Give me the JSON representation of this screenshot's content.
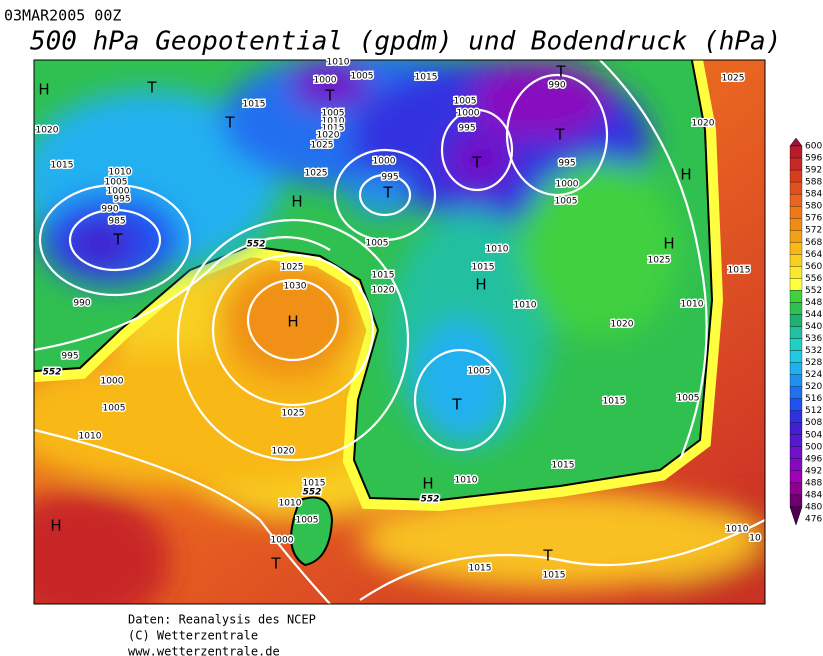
{
  "header": {
    "date": "03MAR2005 00Z",
    "title": "500 hPa Geopotential (gpdm) und Bodendruck (hPa)"
  },
  "footer": {
    "lines": [
      "Daten: Reanalysis des NCEP",
      "(C) Wetterzentrale",
      "www.wetterzentrale.de"
    ]
  },
  "colorbar": {
    "levels": [
      600,
      596,
      592,
      588,
      584,
      580,
      576,
      572,
      568,
      564,
      560,
      556,
      552,
      548,
      544,
      540,
      536,
      532,
      528,
      524,
      520,
      516,
      512,
      508,
      504,
      500,
      496,
      492,
      488,
      484,
      480,
      476
    ],
    "colors": [
      "#a01040",
      "#b81c2c",
      "#c82828",
      "#d83c1c",
      "#e05020",
      "#e86420",
      "#f07818",
      "#f08c14",
      "#f0a014",
      "#f8b818",
      "#f8d020",
      "#f8e830",
      "#ffff40",
      "#40d040",
      "#30c050",
      "#20b070",
      "#20c0a0",
      "#20d0c0",
      "#20c8e0",
      "#20b0f0",
      "#2090f0",
      "#2070f0",
      "#2050f0",
      "#3030e0",
      "#4020d0",
      "#5818d0",
      "#7010c8",
      "#8808c0",
      "#a000b8",
      "#900090",
      "#700070",
      "#500050"
    ]
  },
  "map": {
    "labels": [
      "H",
      "T",
      "T",
      "1020",
      "1015",
      "1010",
      "1005",
      "1000",
      "995",
      "990",
      "985",
      "T",
      "990",
      "995",
      "552",
      "1000",
      "1005",
      "1010",
      "H",
      "1010",
      "1000",
      "1005",
      "T",
      "1015",
      "1005",
      "1010",
      "1015",
      "1020",
      "1025",
      "1025",
      "H",
      "1000",
      "995",
      "T",
      "1005",
      "552",
      "1025",
      "1030",
      "H",
      "1015",
      "1020",
      "1025",
      "1020",
      "1015",
      "552",
      "1010",
      "1005",
      "1000",
      "T",
      "1015",
      "1005",
      "1000",
      "995",
      "T",
      "T",
      "990",
      "T",
      "995",
      "1000",
      "1005",
      "1010",
      "1015",
      "H",
      "1010",
      "H",
      "H",
      "1025",
      "1015",
      "1010",
      "1020",
      "1020",
      "1025",
      "1005",
      "T",
      "1015",
      "1005",
      "1015",
      "H",
      "1010",
      "552",
      "T",
      "1015",
      "1015",
      "1010",
      "10"
    ]
  }
}
